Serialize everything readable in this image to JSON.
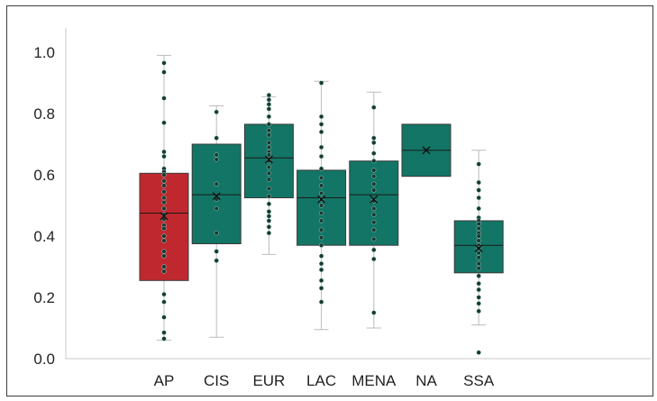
{
  "chart_data": {
    "type": "box",
    "title": "",
    "xlabel": "",
    "ylabel": "",
    "ylim": [
      0,
      1.08
    ],
    "yticks": [
      0.0,
      0.2,
      0.4,
      0.6,
      0.8,
      1.0
    ],
    "ytick_labels": [
      "0.0",
      "0.2",
      "0.4",
      "0.6",
      "0.8",
      "1.0"
    ],
    "grid": false,
    "categories": [
      "AP",
      "CIS",
      "EUR",
      "LAC",
      "MENA",
      "NA",
      "SSA"
    ],
    "colors": {
      "AP": "#c0282f",
      "default": "#127565",
      "whisker": "#bbbbbb",
      "point": "#1a3a34"
    },
    "boxes": [
      {
        "name": "AP",
        "whisker_low": 0.06,
        "q1": 0.255,
        "median": 0.475,
        "q3": 0.605,
        "whisker_high": 0.99,
        "mean": 0.465,
        "points": [
          0.965,
          0.935,
          0.85,
          0.77,
          0.675,
          0.66,
          0.62,
          0.61,
          0.6,
          0.58,
          0.565,
          0.545,
          0.525,
          0.51,
          0.49,
          0.47,
          0.455,
          0.435,
          0.425,
          0.4,
          0.385,
          0.35,
          0.335,
          0.3,
          0.285,
          0.21,
          0.185,
          0.135,
          0.085,
          0.065
        ]
      },
      {
        "name": "CIS",
        "whisker_low": 0.07,
        "q1": 0.375,
        "median": 0.535,
        "q3": 0.7,
        "whisker_high": 0.825,
        "mean": 0.53,
        "points": [
          0.805,
          0.72,
          0.665,
          0.65,
          0.57,
          0.52,
          0.49,
          0.41,
          0.35,
          0.32
        ]
      },
      {
        "name": "EUR",
        "whisker_low": 0.34,
        "q1": 0.525,
        "median": 0.655,
        "q3": 0.765,
        "whisker_high": 0.855,
        "mean": 0.65,
        "points": [
          0.86,
          0.845,
          0.83,
          0.815,
          0.79,
          0.765,
          0.745,
          0.73,
          0.705,
          0.69,
          0.675,
          0.665,
          0.645,
          0.625,
          0.605,
          0.585,
          0.555,
          0.53,
          0.505,
          0.48,
          0.465,
          0.45,
          0.43,
          0.41
        ]
      },
      {
        "name": "LAC",
        "whisker_low": 0.095,
        "q1": 0.37,
        "median": 0.525,
        "q3": 0.615,
        "whisker_high": 0.905,
        "mean": 0.52,
        "points": [
          0.9,
          0.79,
          0.765,
          0.74,
          0.69,
          0.66,
          0.62,
          0.59,
          0.565,
          0.54,
          0.52,
          0.5,
          0.475,
          0.45,
          0.42,
          0.395,
          0.37,
          0.335,
          0.31,
          0.29,
          0.255,
          0.23,
          0.185
        ]
      },
      {
        "name": "MENA",
        "whisker_low": 0.1,
        "q1": 0.37,
        "median": 0.535,
        "q3": 0.645,
        "whisker_high": 0.87,
        "mean": 0.52,
        "points": [
          0.82,
          0.72,
          0.705,
          0.67,
          0.645,
          0.615,
          0.595,
          0.57,
          0.55,
          0.515,
          0.49,
          0.47,
          0.445,
          0.42,
          0.39,
          0.355,
          0.325,
          0.15
        ]
      },
      {
        "name": "NA",
        "whisker_low": null,
        "q1": 0.595,
        "median": 0.68,
        "q3": 0.765,
        "whisker_high": null,
        "mean": 0.68,
        "points": []
      },
      {
        "name": "SSA",
        "whisker_low": 0.11,
        "q1": 0.28,
        "median": 0.37,
        "q3": 0.45,
        "whisker_high": 0.68,
        "mean": 0.36,
        "points": [
          0.635,
          0.575,
          0.55,
          0.525,
          0.49,
          0.46,
          0.45,
          0.44,
          0.425,
          0.41,
          0.4,
          0.385,
          0.37,
          0.36,
          0.345,
          0.33,
          0.31,
          0.295,
          0.27,
          0.245,
          0.225,
          0.2,
          0.18,
          0.155,
          0.02
        ]
      }
    ]
  }
}
